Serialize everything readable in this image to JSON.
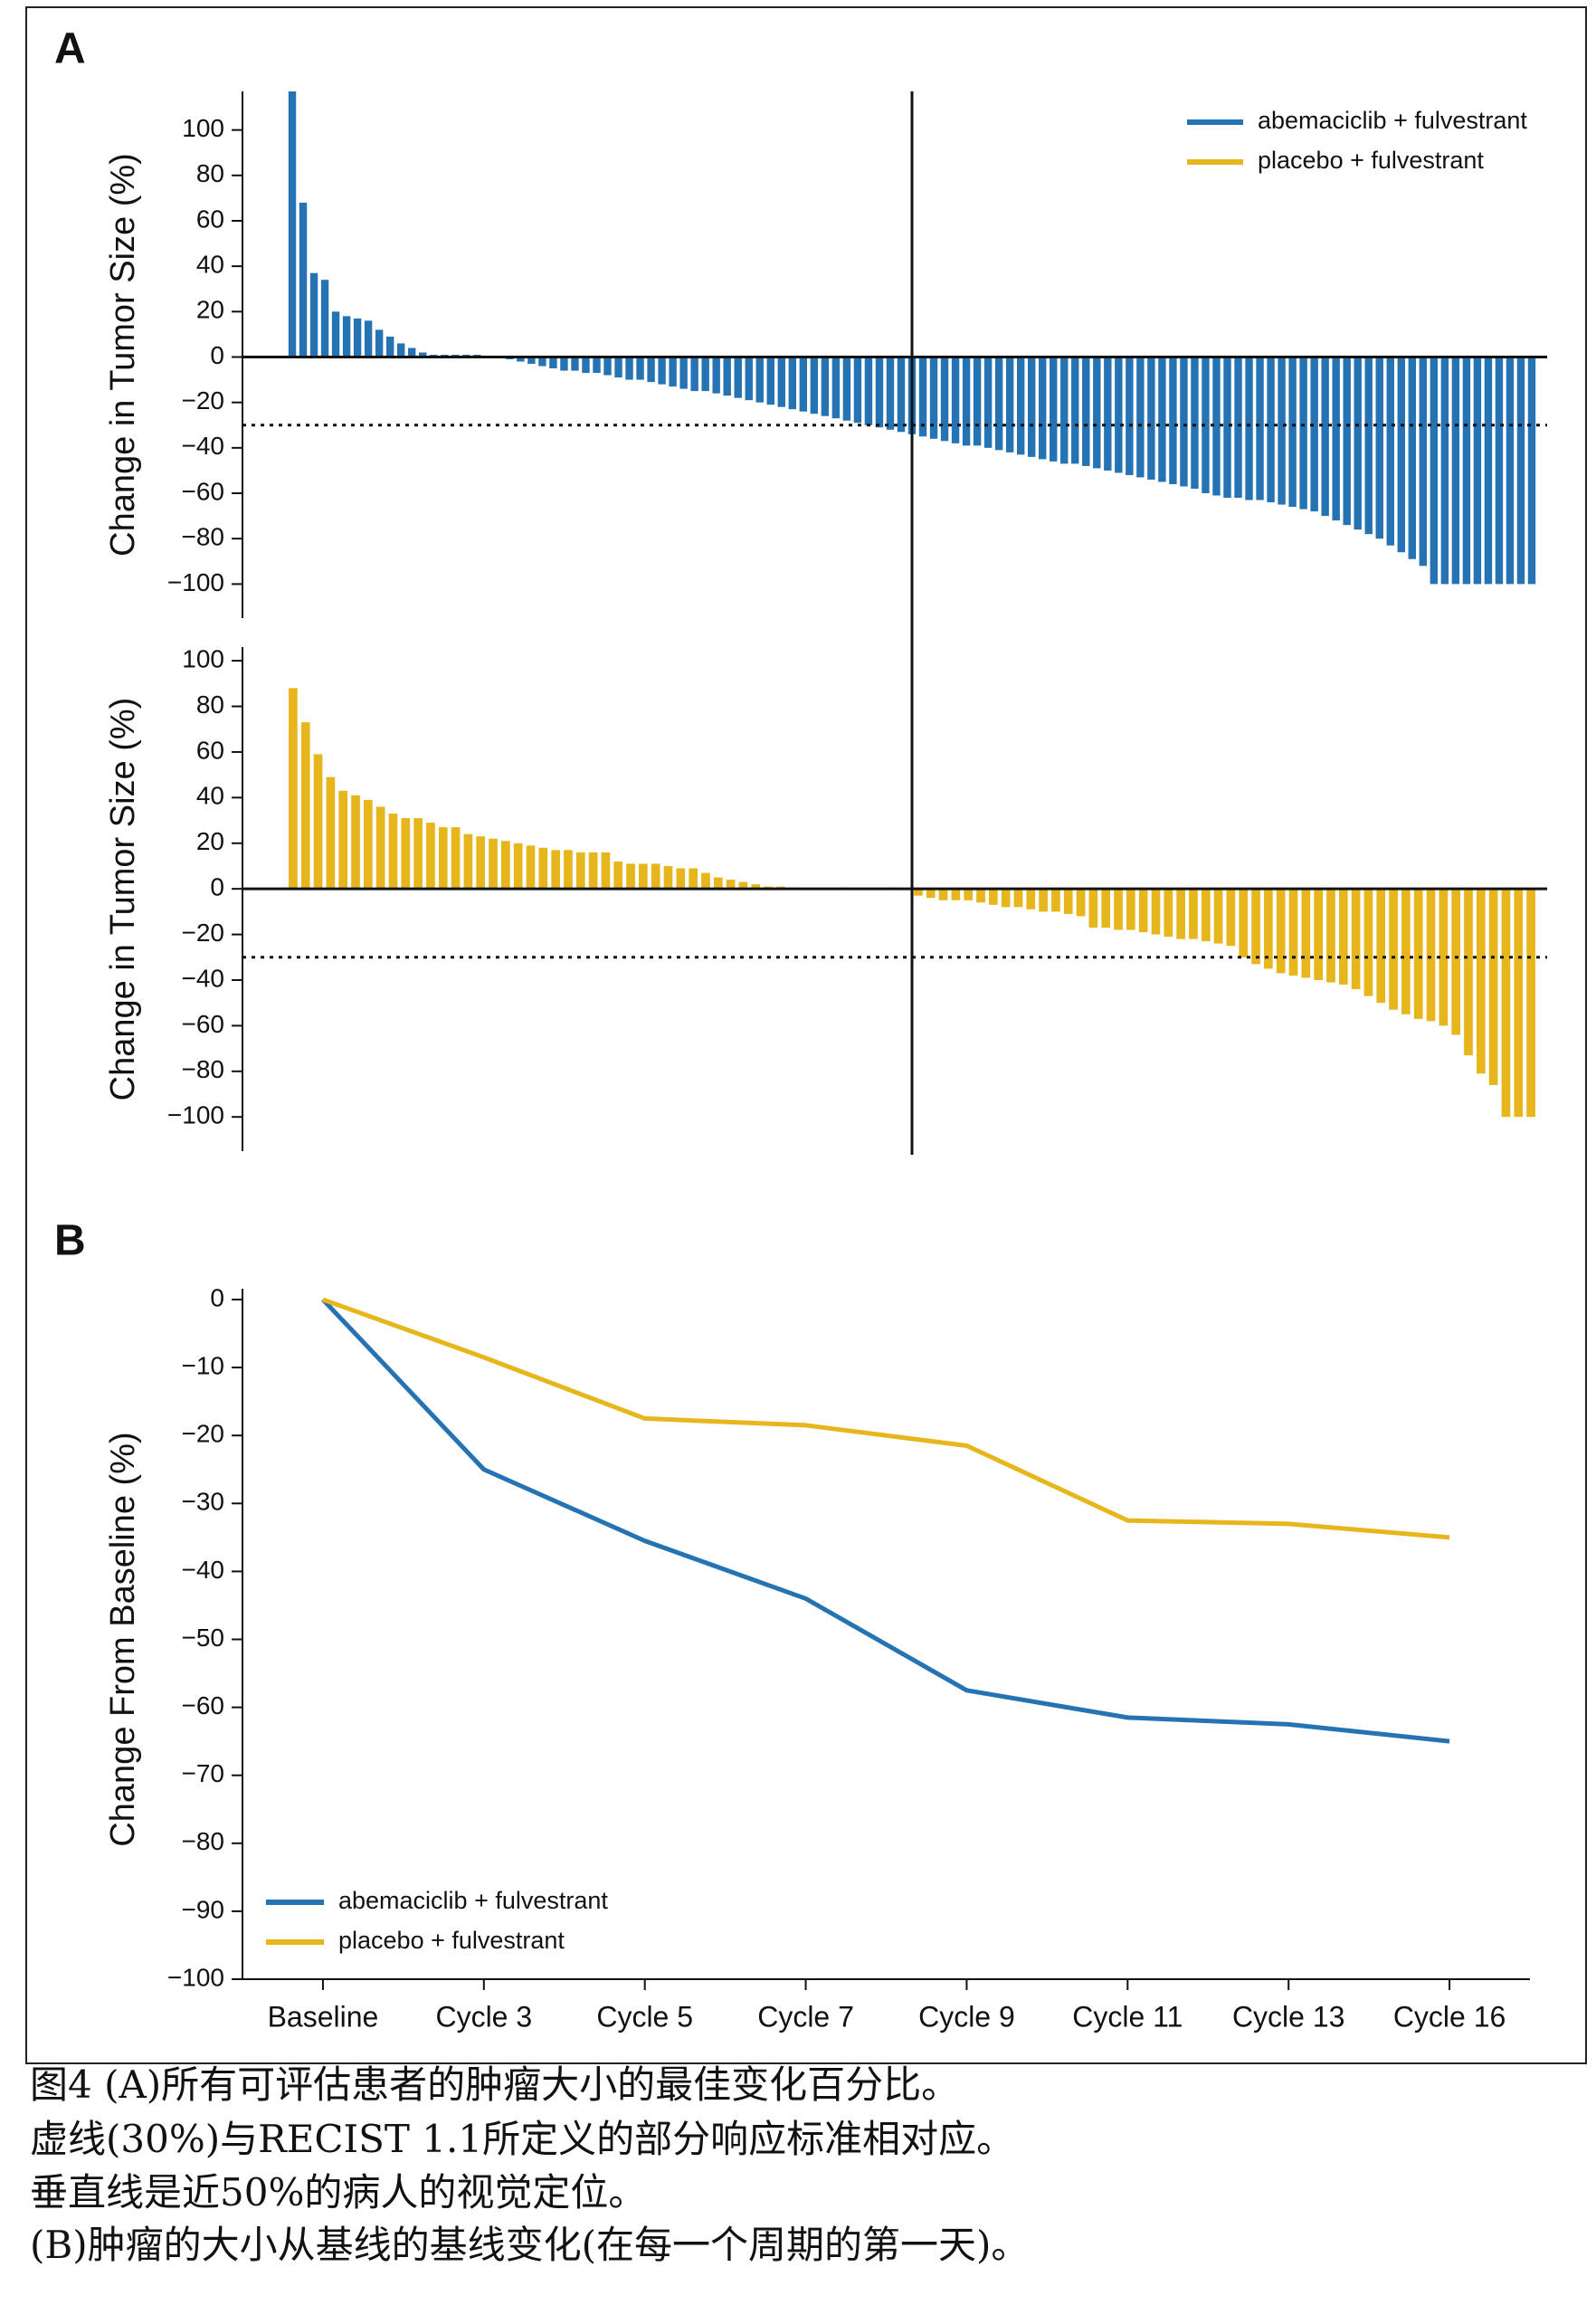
{
  "chart_data": [
    {
      "type": "waterfall",
      "panel": "A",
      "ylabel": "Change in Tumor Size (%)",
      "series": [
        {
          "name": "abemaciclib + fulvestrant",
          "color": "#2573b3",
          "values": [
            117,
            68,
            37,
            34,
            20,
            18,
            17,
            16,
            12,
            9,
            6,
            4,
            2,
            1,
            1,
            1,
            1,
            1,
            0.5,
            0.5,
            -1,
            -2,
            -3,
            -4,
            -5,
            -6,
            -6,
            -7,
            -7,
            -8,
            -9,
            -10,
            -10,
            -11,
            -12,
            -13,
            -14,
            -15,
            -15,
            -16,
            -17,
            -18,
            -19,
            -20,
            -21,
            -22,
            -23,
            -24,
            -25,
            -26,
            -27,
            -28,
            -29,
            -30,
            -31,
            -32,
            -33,
            -34,
            -35,
            -36,
            -37,
            -38,
            -39,
            -39,
            -40,
            -41,
            -42,
            -43,
            -44,
            -45,
            -46,
            -47,
            -47,
            -48,
            -49,
            -50,
            -51,
            -52,
            -53,
            -54,
            -55,
            -56,
            -57,
            -58,
            -60,
            -61,
            -62,
            -62,
            -63,
            -63,
            -64,
            -65,
            -66,
            -67,
            -68,
            -70,
            -72,
            -74,
            -76,
            -78,
            -80,
            -83,
            -86,
            -89,
            -92,
            -100,
            -100,
            -100,
            -100,
            -100,
            -100,
            -100,
            -100,
            -100,
            -100
          ]
        }
      ],
      "ylim": [
        -115,
        117
      ],
      "yticks": [
        {
          "value": -100,
          "label": "−100"
        },
        {
          "value": -80,
          "label": "−80"
        },
        {
          "value": -60,
          "label": "−60"
        },
        {
          "value": -40,
          "label": "−40"
        },
        {
          "value": -20,
          "label": "−20"
        },
        0,
        20,
        40,
        60,
        80,
        100
      ],
      "reference": -30
    },
    {
      "type": "waterfall",
      "ylabel": "Change in Tumor Size (%)",
      "series": [
        {
          "name": "placebo + fulvestrant",
          "color": "#e6b61c",
          "values": [
            88,
            73,
            59,
            49,
            43,
            41,
            39,
            36,
            33,
            31,
            31,
            29,
            27,
            27,
            24,
            23,
            22,
            21,
            20,
            19,
            18,
            17,
            17,
            16,
            16,
            16,
            12,
            11,
            11,
            11,
            10,
            9,
            9,
            7,
            5,
            4,
            3,
            2,
            1,
            1,
            0.5,
            0.5,
            0.5,
            0.5,
            0.5,
            0.5,
            0.5,
            0.5,
            0.5,
            0.5,
            -3,
            -4,
            -5,
            -5,
            -5,
            -6,
            -7,
            -8,
            -8,
            -9,
            -10,
            -10,
            -11,
            -12,
            -17,
            -17,
            -18,
            -18,
            -19,
            -20,
            -21,
            -22,
            -22,
            -23,
            -24,
            -25,
            -30,
            -33,
            -35,
            -37,
            -38,
            -39,
            -40,
            -41,
            -42,
            -44,
            -47,
            -50,
            -53,
            -55,
            -57,
            -58,
            -60,
            -64,
            -73,
            -81,
            -86,
            -100,
            -100,
            -100
          ]
        }
      ],
      "ylim": [
        -115,
        106
      ],
      "yticks": [
        {
          "value": -100,
          "label": "−100"
        },
        {
          "value": -80,
          "label": "−80"
        },
        {
          "value": -60,
          "label": "−60"
        },
        {
          "value": -40,
          "label": "−40"
        },
        {
          "value": -20,
          "label": "−20"
        },
        0,
        20,
        40,
        60,
        80,
        100
      ],
      "reference": -30
    },
    {
      "type": "line",
      "panel": "B",
      "ylabel": "Change From Baseline (%)",
      "categories": [
        "Baseline",
        "Cycle 3",
        "Cycle 5",
        "Cycle 7",
        "Cycle 9",
        "Cycle 11",
        "Cycle 13",
        "Cycle 16"
      ],
      "series": [
        {
          "name": "abemaciclib + fulvestrant",
          "color": "#2573b3",
          "values": [
            0,
            -25,
            -35.5,
            -44,
            -57.5,
            -61.5,
            -62.5,
            -65
          ]
        },
        {
          "name": "placebo + fulvestrant",
          "color": "#e6b61c",
          "values": [
            0,
            -8.5,
            -17.5,
            -18.5,
            -21.5,
            -32.5,
            -33,
            -35
          ]
        }
      ],
      "ylim": [
        -100,
        0
      ],
      "yticks": [
        0,
        {
          "value": -10,
          "label": "−10"
        },
        {
          "value": -20,
          "label": "−20"
        },
        {
          "value": -30,
          "label": "−30"
        },
        {
          "value": -40,
          "label": "−40"
        },
        {
          "value": -50,
          "label": "−50"
        },
        {
          "value": -60,
          "label": "−60"
        },
        {
          "value": -70,
          "label": "−70"
        },
        {
          "value": -80,
          "label": "−80"
        },
        {
          "value": -90,
          "label": "−90"
        },
        {
          "value": -100,
          "label": "−100"
        }
      ]
    }
  ],
  "caption": [
    "图4 (A)所有可评估患者的肿瘤大小的最佳变化百分比。",
    "虚线(30%)与RECIST 1.1所定义的部分响应标准相对应。",
    "垂直线是近50%的病人的视觉定位。",
    "(B)肿瘤的大小从基线的基线变化(在每一个周期的第一天)。"
  ]
}
